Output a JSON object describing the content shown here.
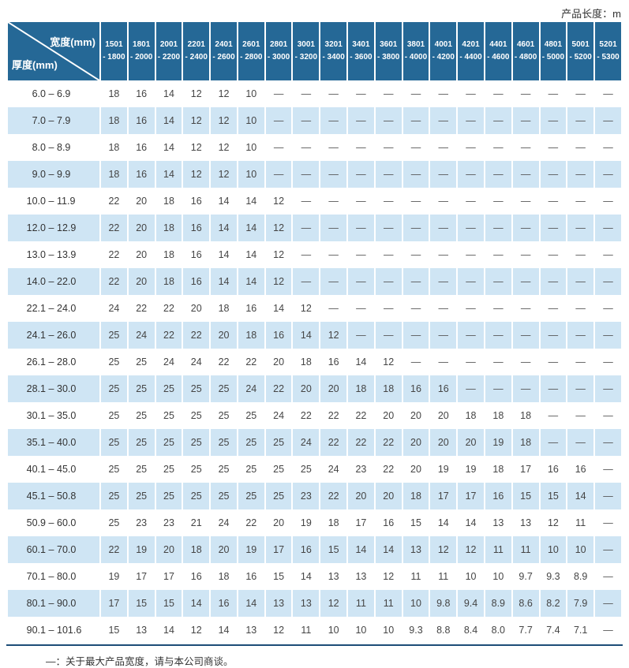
{
  "header": {
    "product_length_label": "产品长度：m"
  },
  "table": {
    "corner": {
      "width_label": "宽度(mm)",
      "thickness_label": "厚度(mm)"
    },
    "columns": [
      {
        "line1": "1501",
        "line2": "- 1800"
      },
      {
        "line1": "1801",
        "line2": "- 2000"
      },
      {
        "line1": "2001",
        "line2": "- 2200"
      },
      {
        "line1": "2201",
        "line2": "- 2400"
      },
      {
        "line1": "2401",
        "line2": "- 2600"
      },
      {
        "line1": "2601",
        "line2": "- 2800"
      },
      {
        "line1": "2801",
        "line2": "- 3000"
      },
      {
        "line1": "3001",
        "line2": "- 3200"
      },
      {
        "line1": "3201",
        "line2": "- 3400"
      },
      {
        "line1": "3401",
        "line2": "- 3600"
      },
      {
        "line1": "3601",
        "line2": "- 3800"
      },
      {
        "line1": "3801",
        "line2": "- 4000"
      },
      {
        "line1": "4001",
        "line2": "- 4200"
      },
      {
        "line1": "4201",
        "line2": "- 4400"
      },
      {
        "line1": "4401",
        "line2": "- 4600"
      },
      {
        "line1": "4601",
        "line2": "- 4800"
      },
      {
        "line1": "4801",
        "line2": "- 5000"
      },
      {
        "line1": "5001",
        "line2": "- 5200"
      },
      {
        "line1": "5201",
        "line2": "- 5300"
      }
    ],
    "rows": [
      {
        "from": "6.0",
        "to": "6.9",
        "values": [
          "18",
          "16",
          "14",
          "12",
          "12",
          "10",
          "—",
          "—",
          "—",
          "—",
          "—",
          "—",
          "—",
          "—",
          "—",
          "—",
          "—",
          "—",
          "—"
        ]
      },
      {
        "from": "7.0",
        "to": "7.9",
        "values": [
          "18",
          "16",
          "14",
          "12",
          "12",
          "10",
          "—",
          "—",
          "—",
          "—",
          "—",
          "—",
          "—",
          "—",
          "—",
          "—",
          "—",
          "—",
          "—"
        ]
      },
      {
        "from": "8.0",
        "to": "8.9",
        "values": [
          "18",
          "16",
          "14",
          "12",
          "12",
          "10",
          "—",
          "—",
          "—",
          "—",
          "—",
          "—",
          "—",
          "—",
          "—",
          "—",
          "—",
          "—",
          "—"
        ]
      },
      {
        "from": "9.0",
        "to": "9.9",
        "values": [
          "18",
          "16",
          "14",
          "12",
          "12",
          "10",
          "—",
          "—",
          "—",
          "—",
          "—",
          "—",
          "—",
          "—",
          "—",
          "—",
          "—",
          "—",
          "—"
        ]
      },
      {
        "from": "10.0",
        "to": "11.9",
        "values": [
          "22",
          "20",
          "18",
          "16",
          "14",
          "14",
          "12",
          "—",
          "—",
          "—",
          "—",
          "—",
          "—",
          "—",
          "—",
          "—",
          "—",
          "—",
          "—"
        ]
      },
      {
        "from": "12.0",
        "to": "12.9",
        "values": [
          "22",
          "20",
          "18",
          "16",
          "14",
          "14",
          "12",
          "—",
          "—",
          "—",
          "—",
          "—",
          "—",
          "—",
          "—",
          "—",
          "—",
          "—",
          "—"
        ]
      },
      {
        "from": "13.0",
        "to": "13.9",
        "values": [
          "22",
          "20",
          "18",
          "16",
          "14",
          "14",
          "12",
          "—",
          "—",
          "—",
          "—",
          "—",
          "—",
          "—",
          "—",
          "—",
          "—",
          "—",
          "—"
        ]
      },
      {
        "from": "14.0",
        "to": "22.0",
        "values": [
          "22",
          "20",
          "18",
          "16",
          "14",
          "14",
          "12",
          "—",
          "—",
          "—",
          "—",
          "—",
          "—",
          "—",
          "—",
          "—",
          "—",
          "—",
          "—"
        ]
      },
      {
        "from": "22.1",
        "to": "24.0",
        "values": [
          "24",
          "22",
          "22",
          "20",
          "18",
          "16",
          "14",
          "12",
          "—",
          "—",
          "—",
          "—",
          "—",
          "—",
          "—",
          "—",
          "—",
          "—",
          "—"
        ]
      },
      {
        "from": "24.1",
        "to": "26.0",
        "values": [
          "25",
          "24",
          "22",
          "22",
          "20",
          "18",
          "16",
          "14",
          "12",
          "—",
          "—",
          "—",
          "—",
          "—",
          "—",
          "—",
          "—",
          "—",
          "—"
        ]
      },
      {
        "from": "26.1",
        "to": "28.0",
        "values": [
          "25",
          "25",
          "24",
          "24",
          "22",
          "22",
          "20",
          "18",
          "16",
          "14",
          "12",
          "—",
          "—",
          "—",
          "—",
          "—",
          "—",
          "—",
          "—"
        ]
      },
      {
        "from": "28.1",
        "to": "30.0",
        "values": [
          "25",
          "25",
          "25",
          "25",
          "25",
          "24",
          "22",
          "20",
          "20",
          "18",
          "18",
          "16",
          "16",
          "—",
          "—",
          "—",
          "—",
          "—",
          "—"
        ]
      },
      {
        "from": "30.1",
        "to": "35.0",
        "values": [
          "25",
          "25",
          "25",
          "25",
          "25",
          "25",
          "24",
          "22",
          "22",
          "22",
          "20",
          "20",
          "20",
          "18",
          "18",
          "18",
          "—",
          "—",
          "—"
        ]
      },
      {
        "from": "35.1",
        "to": "40.0",
        "values": [
          "25",
          "25",
          "25",
          "25",
          "25",
          "25",
          "25",
          "24",
          "22",
          "22",
          "22",
          "20",
          "20",
          "20",
          "19",
          "18",
          "—",
          "—",
          "—"
        ]
      },
      {
        "from": "40.1",
        "to": "45.0",
        "values": [
          "25",
          "25",
          "25",
          "25",
          "25",
          "25",
          "25",
          "25",
          "24",
          "23",
          "22",
          "20",
          "19",
          "19",
          "18",
          "17",
          "16",
          "16",
          "—"
        ]
      },
      {
        "from": "45.1",
        "to": "50.8",
        "values": [
          "25",
          "25",
          "25",
          "25",
          "25",
          "25",
          "25",
          "23",
          "22",
          "20",
          "20",
          "18",
          "17",
          "17",
          "16",
          "15",
          "15",
          "14",
          "—"
        ]
      },
      {
        "from": "50.9",
        "to": "60.0",
        "values": [
          "25",
          "23",
          "23",
          "21",
          "24",
          "22",
          "20",
          "19",
          "18",
          "17",
          "16",
          "15",
          "14",
          "14",
          "13",
          "13",
          "12",
          "11",
          "—"
        ]
      },
      {
        "from": "60.1",
        "to": "70.0",
        "values": [
          "22",
          "19",
          "20",
          "18",
          "20",
          "19",
          "17",
          "16",
          "15",
          "14",
          "14",
          "13",
          "12",
          "12",
          "11",
          "11",
          "10",
          "10",
          "—"
        ]
      },
      {
        "from": "70.1",
        "to": "80.0",
        "values": [
          "19",
          "17",
          "17",
          "16",
          "18",
          "16",
          "15",
          "14",
          "13",
          "13",
          "12",
          "11",
          "11",
          "10",
          "10",
          "9.7",
          "9.3",
          "8.9",
          "—"
        ]
      },
      {
        "from": "80.1",
        "to": "90.0",
        "values": [
          "17",
          "15",
          "15",
          "14",
          "16",
          "14",
          "13",
          "13",
          "12",
          "11",
          "11",
          "10",
          "9.8",
          "9.4",
          "8.9",
          "8.6",
          "8.2",
          "7.9",
          "—"
        ]
      },
      {
        "from": "90.1",
        "to": "101.6",
        "values": [
          "15",
          "13",
          "14",
          "12",
          "14",
          "13",
          "12",
          "11",
          "10",
          "10",
          "10",
          "9.3",
          "8.8",
          "8.4",
          "8.0",
          "7.7",
          "7.4",
          "7.1",
          "—"
        ]
      }
    ],
    "empty_symbol": "—",
    "range_separator": "–"
  },
  "footnote": "—：关于最大产品宽度，请与本公司商谈。",
  "colors": {
    "header_bg": "#256896",
    "stripe": "#cfe5f4",
    "bottom_line": "#1d4d77",
    "text": "#454545"
  }
}
